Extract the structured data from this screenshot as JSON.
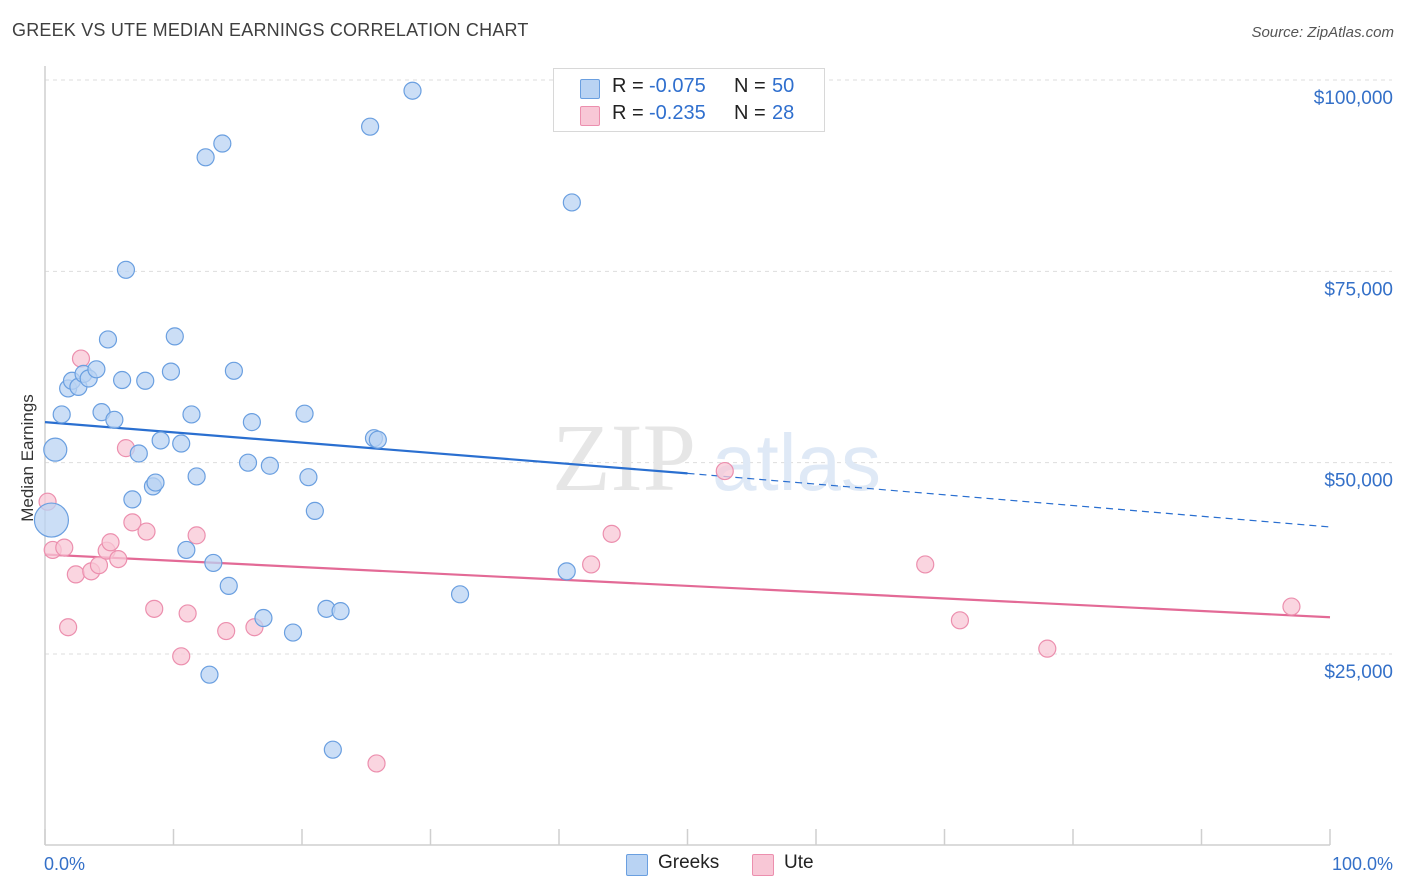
{
  "header": {
    "title": "GREEK VS UTE MEDIAN EARNINGS CORRELATION CHART",
    "source": "Source: ZipAtlas.com"
  },
  "watermark": {
    "zip": "ZIP",
    "atlas": "atlas"
  },
  "legend": {
    "rows": [
      {
        "r_label": "R =",
        "r_value": "-0.075",
        "n_label": "N =",
        "n_value": "50"
      },
      {
        "r_label": "R =",
        "r_value": "-0.235",
        "n_label": "N =",
        "n_value": "28"
      }
    ]
  },
  "bottom_legend": {
    "greeks": "Greeks",
    "ute": "Ute"
  },
  "colors": {
    "greeks_fill": "#b9d3f3",
    "greeks_stroke": "#6a9fe0",
    "greeks_line": "#2a6fd0",
    "ute_fill": "#f8c7d6",
    "ute_stroke": "#ec8fae",
    "ute_line": "#e36a96",
    "axis_text": "#3470c8",
    "grid": "#dddddd"
  },
  "chart_data": {
    "type": "scatter",
    "title": "GREEK VS UTE MEDIAN EARNINGS CORRELATION CHART",
    "xlabel": "",
    "ylabel": "Median Earnings",
    "xlim": [
      0,
      100
    ],
    "ylim": [
      0,
      105000
    ],
    "x_tick_labels": [
      "0.0%",
      "100.0%"
    ],
    "y_ticks": [
      25000,
      50000,
      75000,
      100000
    ],
    "y_tick_labels": [
      "$25,000",
      "$50,000",
      "$75,000",
      "$100,000"
    ],
    "grid": true,
    "series": [
      {
        "name": "Greeks",
        "points": [
          [
            0.5,
            42500
          ],
          [
            0.8,
            51700
          ],
          [
            1.3,
            56300
          ],
          [
            1.8,
            59700
          ],
          [
            2.1,
            60700
          ],
          [
            2.6,
            59900
          ],
          [
            3.0,
            61600
          ],
          [
            3.4,
            61000
          ],
          [
            4.0,
            62200
          ],
          [
            4.4,
            56600
          ],
          [
            4.9,
            66100
          ],
          [
            5.4,
            55600
          ],
          [
            6.0,
            60800
          ],
          [
            6.3,
            75200
          ],
          [
            6.8,
            45200
          ],
          [
            7.3,
            51200
          ],
          [
            7.8,
            60700
          ],
          [
            8.4,
            46900
          ],
          [
            8.6,
            47400
          ],
          [
            9.0,
            52900
          ],
          [
            9.8,
            61900
          ],
          [
            10.1,
            66500
          ],
          [
            10.6,
            52500
          ],
          [
            11.0,
            38600
          ],
          [
            11.4,
            56300
          ],
          [
            11.8,
            48200
          ],
          [
            12.5,
            89900
          ],
          [
            12.8,
            22300
          ],
          [
            13.1,
            36900
          ],
          [
            13.8,
            91700
          ],
          [
            14.3,
            33900
          ],
          [
            14.7,
            62000
          ],
          [
            15.8,
            50000
          ],
          [
            16.1,
            55300
          ],
          [
            17.0,
            29700
          ],
          [
            17.5,
            49600
          ],
          [
            19.3,
            27800
          ],
          [
            20.2,
            56400
          ],
          [
            20.5,
            48100
          ],
          [
            21.0,
            43700
          ],
          [
            21.9,
            30900
          ],
          [
            22.4,
            12500
          ],
          [
            23.0,
            30600
          ],
          [
            25.3,
            93900
          ],
          [
            25.6,
            53200
          ],
          [
            25.9,
            53000
          ],
          [
            28.6,
            98600
          ],
          [
            32.3,
            32800
          ],
          [
            40.6,
            35800
          ],
          [
            41.0,
            84000
          ]
        ]
      },
      {
        "name": "Ute",
        "points": [
          [
            0.2,
            44900
          ],
          [
            0.6,
            38600
          ],
          [
            1.5,
            38900
          ],
          [
            1.8,
            28500
          ],
          [
            2.4,
            35400
          ],
          [
            2.8,
            63600
          ],
          [
            3.6,
            35800
          ],
          [
            4.2,
            36600
          ],
          [
            4.8,
            38500
          ],
          [
            5.1,
            39600
          ],
          [
            5.7,
            37400
          ],
          [
            6.3,
            51900
          ],
          [
            6.8,
            42200
          ],
          [
            7.9,
            41000
          ],
          [
            8.5,
            30900
          ],
          [
            10.6,
            24700
          ],
          [
            11.1,
            30300
          ],
          [
            11.8,
            40500
          ],
          [
            14.1,
            28000
          ],
          [
            16.3,
            28500
          ],
          [
            25.8,
            10700
          ],
          [
            42.5,
            36700
          ],
          [
            44.1,
            40700
          ],
          [
            52.9,
            48900
          ],
          [
            68.5,
            36700
          ],
          [
            71.2,
            29400
          ],
          [
            78.0,
            25700
          ],
          [
            97.0,
            31200
          ]
        ]
      }
    ],
    "trendlines": [
      {
        "series": "Greeks",
        "x": [
          0,
          50
        ],
        "y": [
          55300,
          48600
        ],
        "dashed_extension_to_x": 100,
        "dashed_end_y": 41600
      },
      {
        "series": "Ute",
        "x": [
          0,
          100
        ],
        "y": [
          38000,
          29800
        ]
      }
    ]
  }
}
